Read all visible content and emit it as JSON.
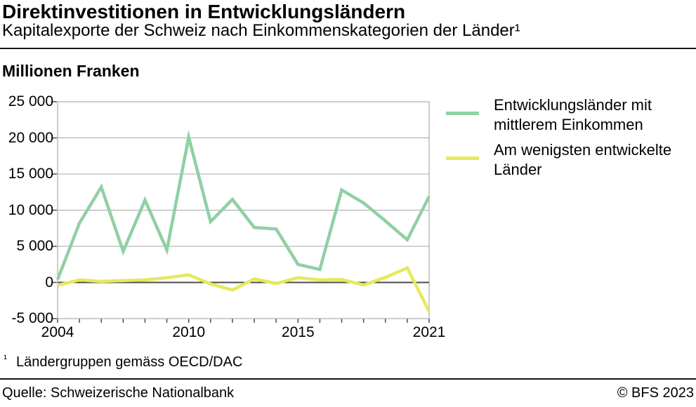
{
  "header": {
    "title": "Direktinvestitionen in Entwicklungsländern",
    "subtitle": "Kapitalexporte der Schweiz nach Einkommenskategorien der Länder¹"
  },
  "chart_data": {
    "type": "line",
    "ylabel": "Millionen Franken",
    "x": [
      2004,
      2005,
      2006,
      2007,
      2008,
      2009,
      2010,
      2011,
      2012,
      2013,
      2014,
      2015,
      2016,
      2017,
      2018,
      2019,
      2020,
      2021
    ],
    "series": [
      {
        "name": "Entwicklungsländer mit mittlerem Einkommen",
        "color": "#90d0a4",
        "values": [
          400,
          8200,
          13200,
          4300,
          11400,
          4500,
          20100,
          8400,
          11500,
          7600,
          7400,
          2500,
          1800,
          12800,
          11000,
          8500,
          5900,
          11900
        ]
      },
      {
        "name": "Am wenigsten entwickelte Länder",
        "color": "#e6e95c",
        "values": [
          -400,
          350,
          150,
          250,
          350,
          650,
          1050,
          -200,
          -1050,
          500,
          -150,
          650,
          350,
          400,
          -350,
          700,
          2000,
          -4000
        ]
      }
    ],
    "ylim": [
      -5000,
      25000
    ],
    "y_ticks": [
      {
        "value": 25000,
        "label": "25 000"
      },
      {
        "value": 20000,
        "label": "20 000"
      },
      {
        "value": 15000,
        "label": "15 000"
      },
      {
        "value": 10000,
        "label": "10 000"
      },
      {
        "value": 5000,
        "label": "5 000"
      },
      {
        "value": 0,
        "label": "0"
      },
      {
        "value": -5000,
        "label": "-5 000"
      }
    ],
    "x_tick_labels": [
      {
        "year": 2004,
        "label": "2004"
      },
      {
        "year": 2010,
        "label": "2010"
      },
      {
        "year": 2015,
        "label": "2015"
      },
      {
        "year": 2021,
        "label": "2021"
      }
    ],
    "grid": "horizontal",
    "legend_position": "right",
    "zero_line": true,
    "colors": {
      "gridline": "#a7a7a7",
      "zero_line": "#4d4d4d",
      "plot_border": "#9b9b9b",
      "tick": "#4d4d4d"
    }
  },
  "footnote": {
    "marker": "¹",
    "text": "Ländergruppen gemäss OECD/DAC"
  },
  "footer": {
    "source": "Quelle: Schweizerische Nationalbank",
    "copyright": "© BFS 2023"
  }
}
